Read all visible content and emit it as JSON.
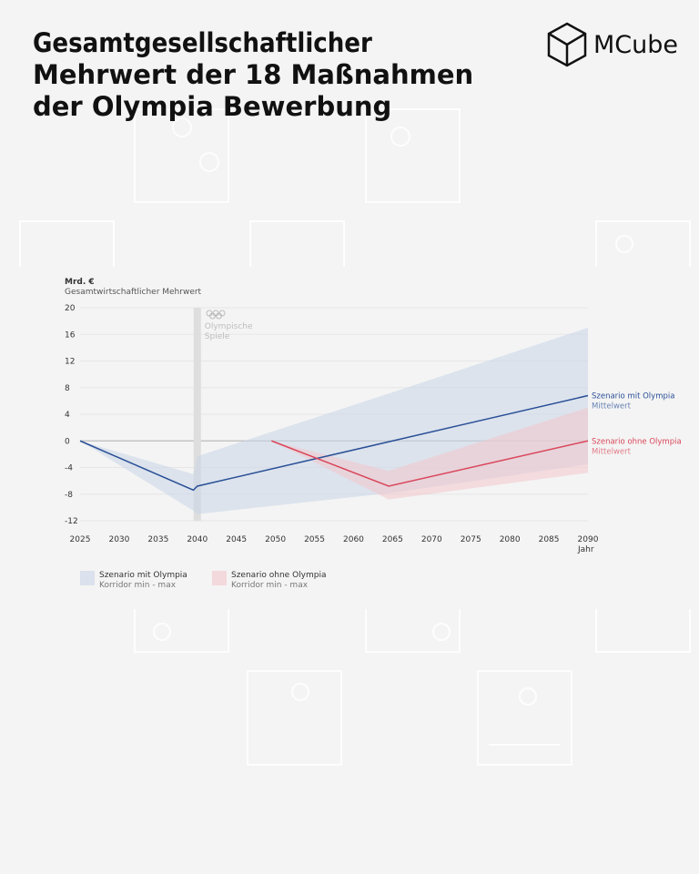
{
  "brand": "MCube",
  "chart_data": {
    "type": "line",
    "title_lines": [
      "Gesamtgesellschaftlicher",
      "Mehrwert der 18 Maßnahmen",
      "der Olympia Bewerbung"
    ],
    "y_unit": "Mrd. €",
    "y_label": "Gesamtwirtschaftlicher Mehrwert",
    "x_label": "Jahr",
    "xlim": [
      2025,
      2090
    ],
    "xticks": [
      2025,
      2030,
      2035,
      2040,
      2045,
      2050,
      2055,
      2060,
      2065,
      2070,
      2075,
      2080,
      2085,
      2090
    ],
    "ylim": [
      -12,
      20
    ],
    "yticks": [
      -12,
      -8,
      -4,
      0,
      4,
      8,
      12,
      16,
      20
    ],
    "grid": true,
    "annotation": {
      "x": 2040,
      "lines": [
        "Olympische",
        "Spiele"
      ]
    },
    "bands": [
      {
        "name": "Szenario mit Olympia",
        "sublabel": "Korridor min - max",
        "color": "#c9d6e8",
        "x": [
          2025,
          2039.5,
          2040,
          2065,
          2090
        ],
        "upper": [
          0,
          -5,
          -2.3,
          7.3,
          17
        ],
        "lower": [
          0,
          -10.5,
          -11,
          -7.8,
          -3.5
        ]
      },
      {
        "name": "Szenario ohne Olympia",
        "sublabel": "Korridor min - max",
        "color": "#f2c6cc",
        "x": [
          2049.5,
          2064.5,
          2090
        ],
        "upper": [
          0,
          -4.5,
          5
        ],
        "lower": [
          0,
          -8.8,
          -4.8
        ]
      }
    ],
    "series": [
      {
        "name": "Szenario mit Olympia",
        "sublabel": "Mittelwert",
        "color": "#2a4f96",
        "x": [
          2025,
          2039.5,
          2040,
          2090
        ],
        "values": [
          0,
          -7.4,
          -6.8,
          6.8
        ]
      },
      {
        "name": "Szenario ohne Olympia",
        "sublabel": "Mittelwert",
        "color": "#d9475a",
        "x": [
          2049.5,
          2064.5,
          2090
        ],
        "values": [
          0,
          -6.8,
          0
        ]
      }
    ]
  }
}
